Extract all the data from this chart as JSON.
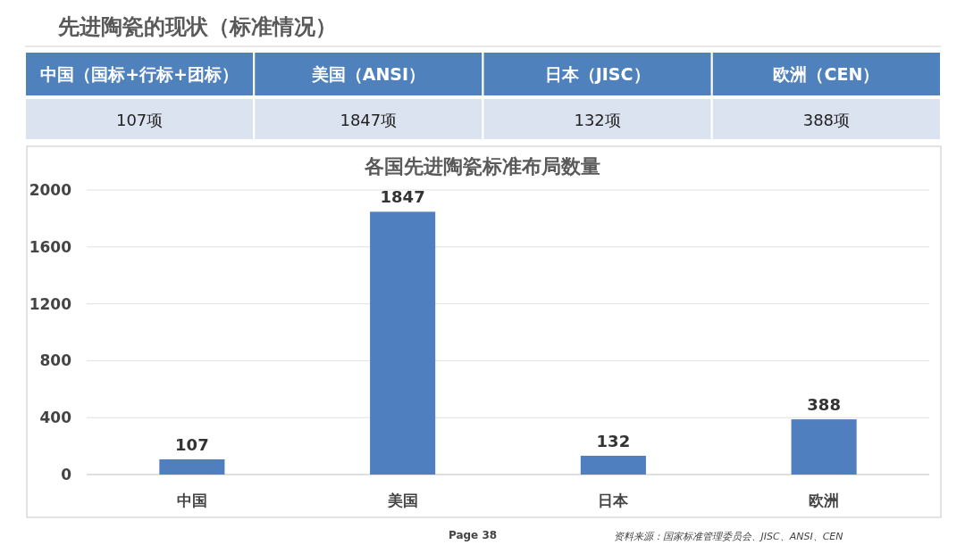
{
  "chart_data": {
    "type": "bar",
    "title": "先进陶瓷的现状（标准情况）",
    "subtitle": "各国先进陶瓷标准布局数量",
    "categories": [
      "中国",
      "美国",
      "日本",
      "欧洲"
    ],
    "values": [
      107,
      1847,
      132,
      388
    ],
    "color": "#4f7fbf",
    "ylim": [
      0,
      2000
    ],
    "yticks": [
      0,
      400,
      800,
      1200,
      1600,
      2000
    ],
    "grid": "y",
    "data_labels": true,
    "annotations": [
      "中国（国标+行标+团标）",
      "美国（ANSI）",
      "日本（JISC）",
      "欧洲（CEN）",
      "107项",
      "1847项",
      "132项",
      "388项",
      "Page 38",
      "资料来源：国家标准管理委员会、JISC、ANSI、CEN"
    ]
  }
}
